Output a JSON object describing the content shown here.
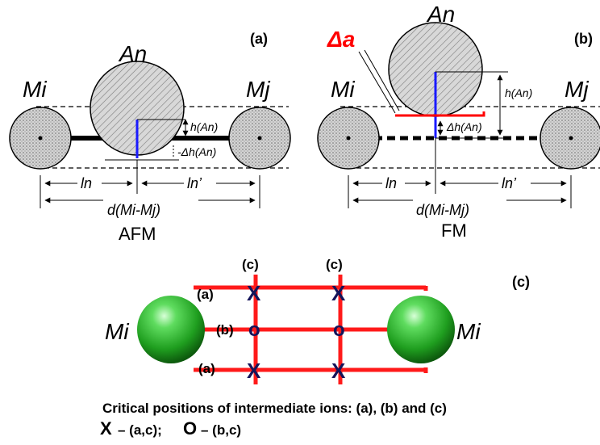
{
  "panel_a": {
    "tag": "(a)",
    "left_ion": "Mi",
    "right_ion": "Mj",
    "top_ion": "An",
    "h_label": "h(An)",
    "dh_label": "-Δh(An)",
    "ln_label": "ln",
    "lnp_label": "ln’",
    "d_label": "d(Mi-Mj)",
    "order": "AFM"
  },
  "panel_b": {
    "tag": "(b)",
    "left_ion": "Mi",
    "right_ion": "Mj",
    "top_ion": "An",
    "delta_a": "Δa",
    "h_label": "h(An)",
    "dh_label": "Δh(An)",
    "ln_label": "ln",
    "lnp_label": "ln’",
    "d_label": "d(Mi-Mj)",
    "order": "FM"
  },
  "panel_c": {
    "tag": "(c)",
    "left_ion": "Mi",
    "right_ion": "Mi",
    "col_label_1": "(c)",
    "col_label_2": "(c)",
    "row_top": "(a)",
    "row_mid": "(b)",
    "row_bot": "(a)",
    "marker_x": "X",
    "marker_o": "o",
    "caption": "Critical positions of intermediate ions: (a), (b) and (c)",
    "legend_x_sym": "X",
    "legend_x_text": "– (a,c);",
    "legend_o_sym": "O",
    "legend_o_text": "– (b,c)"
  },
  "colors": {
    "ion_fill": "#c8c8c8",
    "accent_red": "#ff0000",
    "blue": "#1a1aff",
    "sphere_green": "#22a822",
    "marker_navy": "#14145a"
  }
}
